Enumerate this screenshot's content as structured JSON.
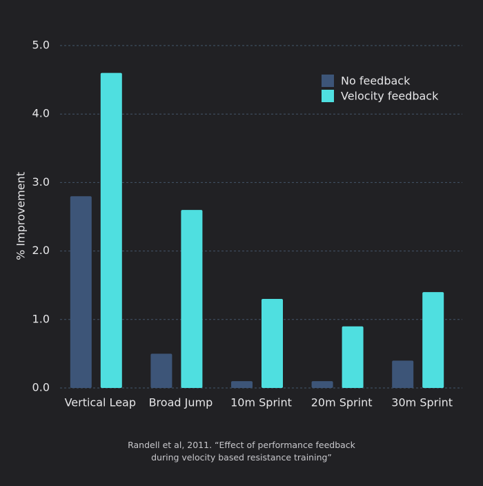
{
  "chart_data": {
    "type": "bar",
    "title": "",
    "xlabel": "",
    "ylabel": "% Improvement",
    "ylim": [
      0,
      5
    ],
    "yticks": [
      "0.0",
      "1.0",
      "2.0",
      "3.0",
      "4.0",
      "5.0"
    ],
    "grid": true,
    "legend_position": "top-right",
    "categories": [
      "Vertical Leap",
      "Broad Jump",
      "10m Sprint",
      "20m Sprint",
      "30m Sprint"
    ],
    "series": [
      {
        "name": "No feedback",
        "color": "#3d5578",
        "values": [
          2.8,
          0.5,
          0.1,
          0.1,
          0.4
        ]
      },
      {
        "name": "Velocity feedback",
        "color": "#4fdfe0",
        "values": [
          4.6,
          2.6,
          1.3,
          0.9,
          1.4
        ]
      }
    ]
  },
  "caption": {
    "line1": "Randell et al, 2011. “Effect of performance feedback",
    "line2": "during velocity based resistance training”"
  },
  "colors": {
    "background": "#212124",
    "grid": "#44566b",
    "axis_text": "#e6e6e8"
  }
}
